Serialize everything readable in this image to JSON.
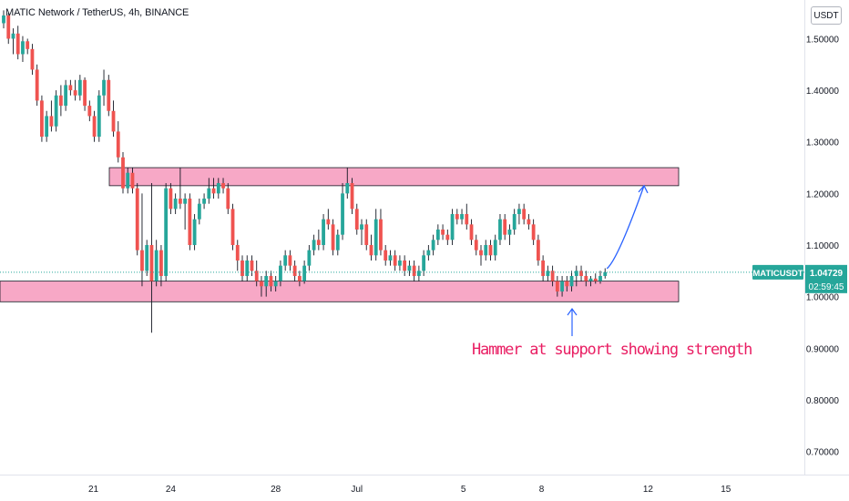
{
  "header": {
    "symbol_title": "MATIC Network / TetherUS, 4h, BINANCE",
    "currency_button": "USDT"
  },
  "price_tag": {
    "symbol": "MATICUSDT",
    "price": "1.04729",
    "countdown": "02:59:45",
    "color": "#26a69a"
  },
  "annotation": {
    "text": "Hammer at support showing strength",
    "color": "#e91e63"
  },
  "colors": {
    "up": "#26a69a",
    "down": "#ef5350",
    "zone_fill": "#f7a8c6",
    "arrow": "#2962ff"
  },
  "chart_data": {
    "type": "candlestick",
    "title": "MATIC Network / TetherUS, 4h, BINANCE",
    "y_tick_labels": [
      "1.50000",
      "1.40000",
      "1.30000",
      "1.20000",
      "1.10000",
      "1.00000",
      "0.90000",
      "0.80000",
      "0.70000"
    ],
    "x_tick_labels": [
      "21",
      "24",
      "28",
      "Jul",
      "5",
      "8",
      "12",
      "15"
    ],
    "ylim": [
      0.655,
      1.575
    ],
    "last_price": 1.04729,
    "resistance_zone": [
      1.215,
      1.25
    ],
    "support_zone": [
      0.99,
      1.03
    ],
    "projection_target": 1.215,
    "candles": [
      {
        "o": 1.53,
        "h": 1.555,
        "l": 1.52,
        "c": 1.545
      },
      {
        "o": 1.545,
        "h": 1.55,
        "l": 1.49,
        "c": 1.5
      },
      {
        "o": 1.5,
        "h": 1.52,
        "l": 1.47,
        "c": 1.51
      },
      {
        "o": 1.51,
        "h": 1.525,
        "l": 1.46,
        "c": 1.47
      },
      {
        "o": 1.47,
        "h": 1.505,
        "l": 1.455,
        "c": 1.495
      },
      {
        "o": 1.495,
        "h": 1.5,
        "l": 1.47,
        "c": 1.48
      },
      {
        "o": 1.48,
        "h": 1.49,
        "l": 1.43,
        "c": 1.44
      },
      {
        "o": 1.44,
        "h": 1.45,
        "l": 1.37,
        "c": 1.38
      },
      {
        "o": 1.38,
        "h": 1.39,
        "l": 1.3,
        "c": 1.31
      },
      {
        "o": 1.31,
        "h": 1.36,
        "l": 1.3,
        "c": 1.35
      },
      {
        "o": 1.35,
        "h": 1.38,
        "l": 1.32,
        "c": 1.33
      },
      {
        "o": 1.33,
        "h": 1.4,
        "l": 1.32,
        "c": 1.39
      },
      {
        "o": 1.39,
        "h": 1.41,
        "l": 1.35,
        "c": 1.37
      },
      {
        "o": 1.37,
        "h": 1.42,
        "l": 1.36,
        "c": 1.41
      },
      {
        "o": 1.41,
        "h": 1.42,
        "l": 1.39,
        "c": 1.4
      },
      {
        "o": 1.4,
        "h": 1.42,
        "l": 1.38,
        "c": 1.39
      },
      {
        "o": 1.39,
        "h": 1.43,
        "l": 1.38,
        "c": 1.42
      },
      {
        "o": 1.42,
        "h": 1.425,
        "l": 1.36,
        "c": 1.37
      },
      {
        "o": 1.37,
        "h": 1.38,
        "l": 1.34,
        "c": 1.35
      },
      {
        "o": 1.35,
        "h": 1.36,
        "l": 1.3,
        "c": 1.31
      },
      {
        "o": 1.31,
        "h": 1.4,
        "l": 1.3,
        "c": 1.39
      },
      {
        "o": 1.39,
        "h": 1.44,
        "l": 1.37,
        "c": 1.42
      },
      {
        "o": 1.42,
        "h": 1.43,
        "l": 1.35,
        "c": 1.36
      },
      {
        "o": 1.36,
        "h": 1.38,
        "l": 1.31,
        "c": 1.32
      },
      {
        "o": 1.32,
        "h": 1.34,
        "l": 1.26,
        "c": 1.27
      },
      {
        "o": 1.27,
        "h": 1.28,
        "l": 1.2,
        "c": 1.21
      },
      {
        "o": 1.21,
        "h": 1.25,
        "l": 1.2,
        "c": 1.24
      },
      {
        "o": 1.24,
        "h": 1.25,
        "l": 1.2,
        "c": 1.21
      },
      {
        "o": 1.21,
        "h": 1.22,
        "l": 1.08,
        "c": 1.09
      },
      {
        "o": 1.09,
        "h": 1.2,
        "l": 1.02,
        "c": 1.05
      },
      {
        "o": 1.05,
        "h": 1.11,
        "l": 1.04,
        "c": 1.1
      },
      {
        "o": 1.1,
        "h": 1.22,
        "l": 0.93,
        "c": 1.03
      },
      {
        "o": 1.03,
        "h": 1.11,
        "l": 1.02,
        "c": 1.09
      },
      {
        "o": 1.09,
        "h": 1.1,
        "l": 1.02,
        "c": 1.04
      },
      {
        "o": 1.04,
        "h": 1.22,
        "l": 1.03,
        "c": 1.21
      },
      {
        "o": 1.21,
        "h": 1.22,
        "l": 1.16,
        "c": 1.17
      },
      {
        "o": 1.17,
        "h": 1.2,
        "l": 1.16,
        "c": 1.19
      },
      {
        "o": 1.19,
        "h": 1.25,
        "l": 1.17,
        "c": 1.18
      },
      {
        "o": 1.18,
        "h": 1.2,
        "l": 1.13,
        "c": 1.19
      },
      {
        "o": 1.19,
        "h": 1.2,
        "l": 1.09,
        "c": 1.1
      },
      {
        "o": 1.1,
        "h": 1.16,
        "l": 1.09,
        "c": 1.15
      },
      {
        "o": 1.15,
        "h": 1.19,
        "l": 1.14,
        "c": 1.18
      },
      {
        "o": 1.18,
        "h": 1.2,
        "l": 1.17,
        "c": 1.19
      },
      {
        "o": 1.19,
        "h": 1.23,
        "l": 1.18,
        "c": 1.21
      },
      {
        "o": 1.21,
        "h": 1.23,
        "l": 1.19,
        "c": 1.2
      },
      {
        "o": 1.2,
        "h": 1.23,
        "l": 1.19,
        "c": 1.22
      },
      {
        "o": 1.22,
        "h": 1.23,
        "l": 1.2,
        "c": 1.21
      },
      {
        "o": 1.21,
        "h": 1.22,
        "l": 1.16,
        "c": 1.17
      },
      {
        "o": 1.17,
        "h": 1.18,
        "l": 1.09,
        "c": 1.1
      },
      {
        "o": 1.1,
        "h": 1.11,
        "l": 1.05,
        "c": 1.07
      },
      {
        "o": 1.07,
        "h": 1.08,
        "l": 1.03,
        "c": 1.04
      },
      {
        "o": 1.04,
        "h": 1.08,
        "l": 1.03,
        "c": 1.07
      },
      {
        "o": 1.07,
        "h": 1.08,
        "l": 1.04,
        "c": 1.05
      },
      {
        "o": 1.05,
        "h": 1.07,
        "l": 1.02,
        "c": 1.03
      },
      {
        "o": 1.03,
        "h": 1.04,
        "l": 1.0,
        "c": 1.02
      },
      {
        "o": 1.02,
        "h": 1.05,
        "l": 1.0,
        "c": 1.04
      },
      {
        "o": 1.04,
        "h": 1.05,
        "l": 1.01,
        "c": 1.02
      },
      {
        "o": 1.02,
        "h": 1.04,
        "l": 1.01,
        "c": 1.03
      },
      {
        "o": 1.03,
        "h": 1.07,
        "l": 1.02,
        "c": 1.06
      },
      {
        "o": 1.06,
        "h": 1.09,
        "l": 1.05,
        "c": 1.08
      },
      {
        "o": 1.08,
        "h": 1.09,
        "l": 1.05,
        "c": 1.06
      },
      {
        "o": 1.06,
        "h": 1.07,
        "l": 1.03,
        "c": 1.04
      },
      {
        "o": 1.04,
        "h": 1.05,
        "l": 1.02,
        "c": 1.03
      },
      {
        "o": 1.03,
        "h": 1.07,
        "l": 1.025,
        "c": 1.06
      },
      {
        "o": 1.06,
        "h": 1.1,
        "l": 1.05,
        "c": 1.09
      },
      {
        "o": 1.09,
        "h": 1.12,
        "l": 1.08,
        "c": 1.11
      },
      {
        "o": 1.11,
        "h": 1.13,
        "l": 1.09,
        "c": 1.1
      },
      {
        "o": 1.1,
        "h": 1.16,
        "l": 1.09,
        "c": 1.15
      },
      {
        "o": 1.15,
        "h": 1.17,
        "l": 1.13,
        "c": 1.14
      },
      {
        "o": 1.14,
        "h": 1.15,
        "l": 1.08,
        "c": 1.09
      },
      {
        "o": 1.09,
        "h": 1.13,
        "l": 1.08,
        "c": 1.12
      },
      {
        "o": 1.12,
        "h": 1.22,
        "l": 1.11,
        "c": 1.2
      },
      {
        "o": 1.2,
        "h": 1.25,
        "l": 1.19,
        "c": 1.22
      },
      {
        "o": 1.22,
        "h": 1.23,
        "l": 1.16,
        "c": 1.17
      },
      {
        "o": 1.17,
        "h": 1.18,
        "l": 1.12,
        "c": 1.13
      },
      {
        "o": 1.13,
        "h": 1.15,
        "l": 1.1,
        "c": 1.14
      },
      {
        "o": 1.14,
        "h": 1.15,
        "l": 1.09,
        "c": 1.1
      },
      {
        "o": 1.1,
        "h": 1.12,
        "l": 1.07,
        "c": 1.08
      },
      {
        "o": 1.08,
        "h": 1.17,
        "l": 1.07,
        "c": 1.15
      },
      {
        "o": 1.15,
        "h": 1.17,
        "l": 1.08,
        "c": 1.09
      },
      {
        "o": 1.09,
        "h": 1.1,
        "l": 1.06,
        "c": 1.07
      },
      {
        "o": 1.07,
        "h": 1.09,
        "l": 1.06,
        "c": 1.08
      },
      {
        "o": 1.08,
        "h": 1.09,
        "l": 1.05,
        "c": 1.06
      },
      {
        "o": 1.06,
        "h": 1.08,
        "l": 1.05,
        "c": 1.07
      },
      {
        "o": 1.07,
        "h": 1.08,
        "l": 1.04,
        "c": 1.05
      },
      {
        "o": 1.05,
        "h": 1.07,
        "l": 1.04,
        "c": 1.06
      },
      {
        "o": 1.06,
        "h": 1.07,
        "l": 1.03,
        "c": 1.04
      },
      {
        "o": 1.04,
        "h": 1.06,
        "l": 1.03,
        "c": 1.05
      },
      {
        "o": 1.05,
        "h": 1.09,
        "l": 1.04,
        "c": 1.08
      },
      {
        "o": 1.08,
        "h": 1.1,
        "l": 1.07,
        "c": 1.09
      },
      {
        "o": 1.09,
        "h": 1.12,
        "l": 1.08,
        "c": 1.11
      },
      {
        "o": 1.11,
        "h": 1.14,
        "l": 1.1,
        "c": 1.13
      },
      {
        "o": 1.13,
        "h": 1.14,
        "l": 1.11,
        "c": 1.12
      },
      {
        "o": 1.12,
        "h": 1.13,
        "l": 1.1,
        "c": 1.11
      },
      {
        "o": 1.11,
        "h": 1.17,
        "l": 1.1,
        "c": 1.16
      },
      {
        "o": 1.16,
        "h": 1.17,
        "l": 1.14,
        "c": 1.15
      },
      {
        "o": 1.15,
        "h": 1.17,
        "l": 1.14,
        "c": 1.16
      },
      {
        "o": 1.16,
        "h": 1.18,
        "l": 1.13,
        "c": 1.14
      },
      {
        "o": 1.14,
        "h": 1.15,
        "l": 1.1,
        "c": 1.11
      },
      {
        "o": 1.11,
        "h": 1.12,
        "l": 1.08,
        "c": 1.09
      },
      {
        "o": 1.09,
        "h": 1.1,
        "l": 1.06,
        "c": 1.08
      },
      {
        "o": 1.08,
        "h": 1.11,
        "l": 1.07,
        "c": 1.1
      },
      {
        "o": 1.1,
        "h": 1.11,
        "l": 1.07,
        "c": 1.08
      },
      {
        "o": 1.08,
        "h": 1.12,
        "l": 1.07,
        "c": 1.11
      },
      {
        "o": 1.11,
        "h": 1.16,
        "l": 1.1,
        "c": 1.15
      },
      {
        "o": 1.15,
        "h": 1.16,
        "l": 1.11,
        "c": 1.12
      },
      {
        "o": 1.12,
        "h": 1.14,
        "l": 1.1,
        "c": 1.13
      },
      {
        "o": 1.13,
        "h": 1.17,
        "l": 1.12,
        "c": 1.16
      },
      {
        "o": 1.16,
        "h": 1.18,
        "l": 1.14,
        "c": 1.17
      },
      {
        "o": 1.17,
        "h": 1.18,
        "l": 1.14,
        "c": 1.15
      },
      {
        "o": 1.15,
        "h": 1.16,
        "l": 1.13,
        "c": 1.14
      },
      {
        "o": 1.14,
        "h": 1.15,
        "l": 1.1,
        "c": 1.11
      },
      {
        "o": 1.11,
        "h": 1.12,
        "l": 1.06,
        "c": 1.07
      },
      {
        "o": 1.07,
        "h": 1.08,
        "l": 1.03,
        "c": 1.04
      },
      {
        "o": 1.04,
        "h": 1.06,
        "l": 1.03,
        "c": 1.05
      },
      {
        "o": 1.05,
        "h": 1.06,
        "l": 1.02,
        "c": 1.03
      },
      {
        "o": 1.03,
        "h": 1.04,
        "l": 1.0,
        "c": 1.01
      },
      {
        "o": 1.01,
        "h": 1.04,
        "l": 1.0,
        "c": 1.03
      },
      {
        "o": 1.03,
        "h": 1.04,
        "l": 1.01,
        "c": 1.02
      },
      {
        "o": 1.02,
        "h": 1.05,
        "l": 1.01,
        "c": 1.04
      },
      {
        "o": 1.04,
        "h": 1.06,
        "l": 1.02,
        "c": 1.05
      },
      {
        "o": 1.05,
        "h": 1.06,
        "l": 1.03,
        "c": 1.04
      },
      {
        "o": 1.04,
        "h": 1.05,
        "l": 1.02,
        "c": 1.03
      },
      {
        "o": 1.03,
        "h": 1.04,
        "l": 1.02,
        "c": 1.035
      },
      {
        "o": 1.035,
        "h": 1.045,
        "l": 1.025,
        "c": 1.03
      },
      {
        "o": 1.03,
        "h": 1.05,
        "l": 1.025,
        "c": 1.04
      },
      {
        "o": 1.04,
        "h": 1.055,
        "l": 1.035,
        "c": 1.04729
      }
    ]
  }
}
